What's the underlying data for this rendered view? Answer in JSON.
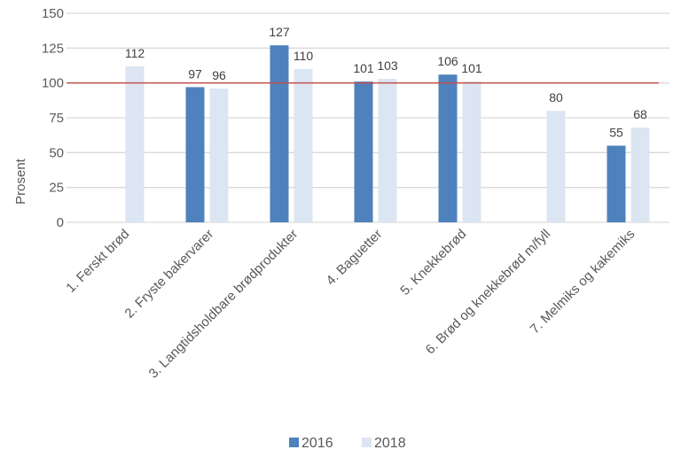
{
  "chart_data": {
    "type": "bar",
    "title": "",
    "xlabel": "",
    "ylabel": "Prosent",
    "ylim": [
      0,
      150
    ],
    "yticks": [
      0,
      25,
      50,
      75,
      100,
      125,
      150
    ],
    "grid": true,
    "legend_position": "bottom",
    "reference_line": {
      "value": 100,
      "color": "#C0504D"
    },
    "categories": [
      "1. Ferskt brød",
      "2. Fryste bakervarer",
      "3. Langtidsholdbare brødprodukter",
      "4. Baguetter",
      "5. Knekkebrød",
      "6. Brød og knekkebrød m/fyll",
      "7. Melmiks og kakemiks"
    ],
    "series": [
      {
        "name": "2016",
        "color": "#4F81BD",
        "values": [
          null,
          97,
          127,
          101,
          106,
          null,
          55
        ]
      },
      {
        "name": "2018",
        "color": "#DCE6F2",
        "values": [
          112,
          96,
          110,
          103,
          101,
          80,
          68
        ]
      }
    ]
  },
  "legend": {
    "items": [
      {
        "label": "2016",
        "color": "#4F81BD"
      },
      {
        "label": "2018",
        "color": "#DCE6F2"
      }
    ]
  }
}
